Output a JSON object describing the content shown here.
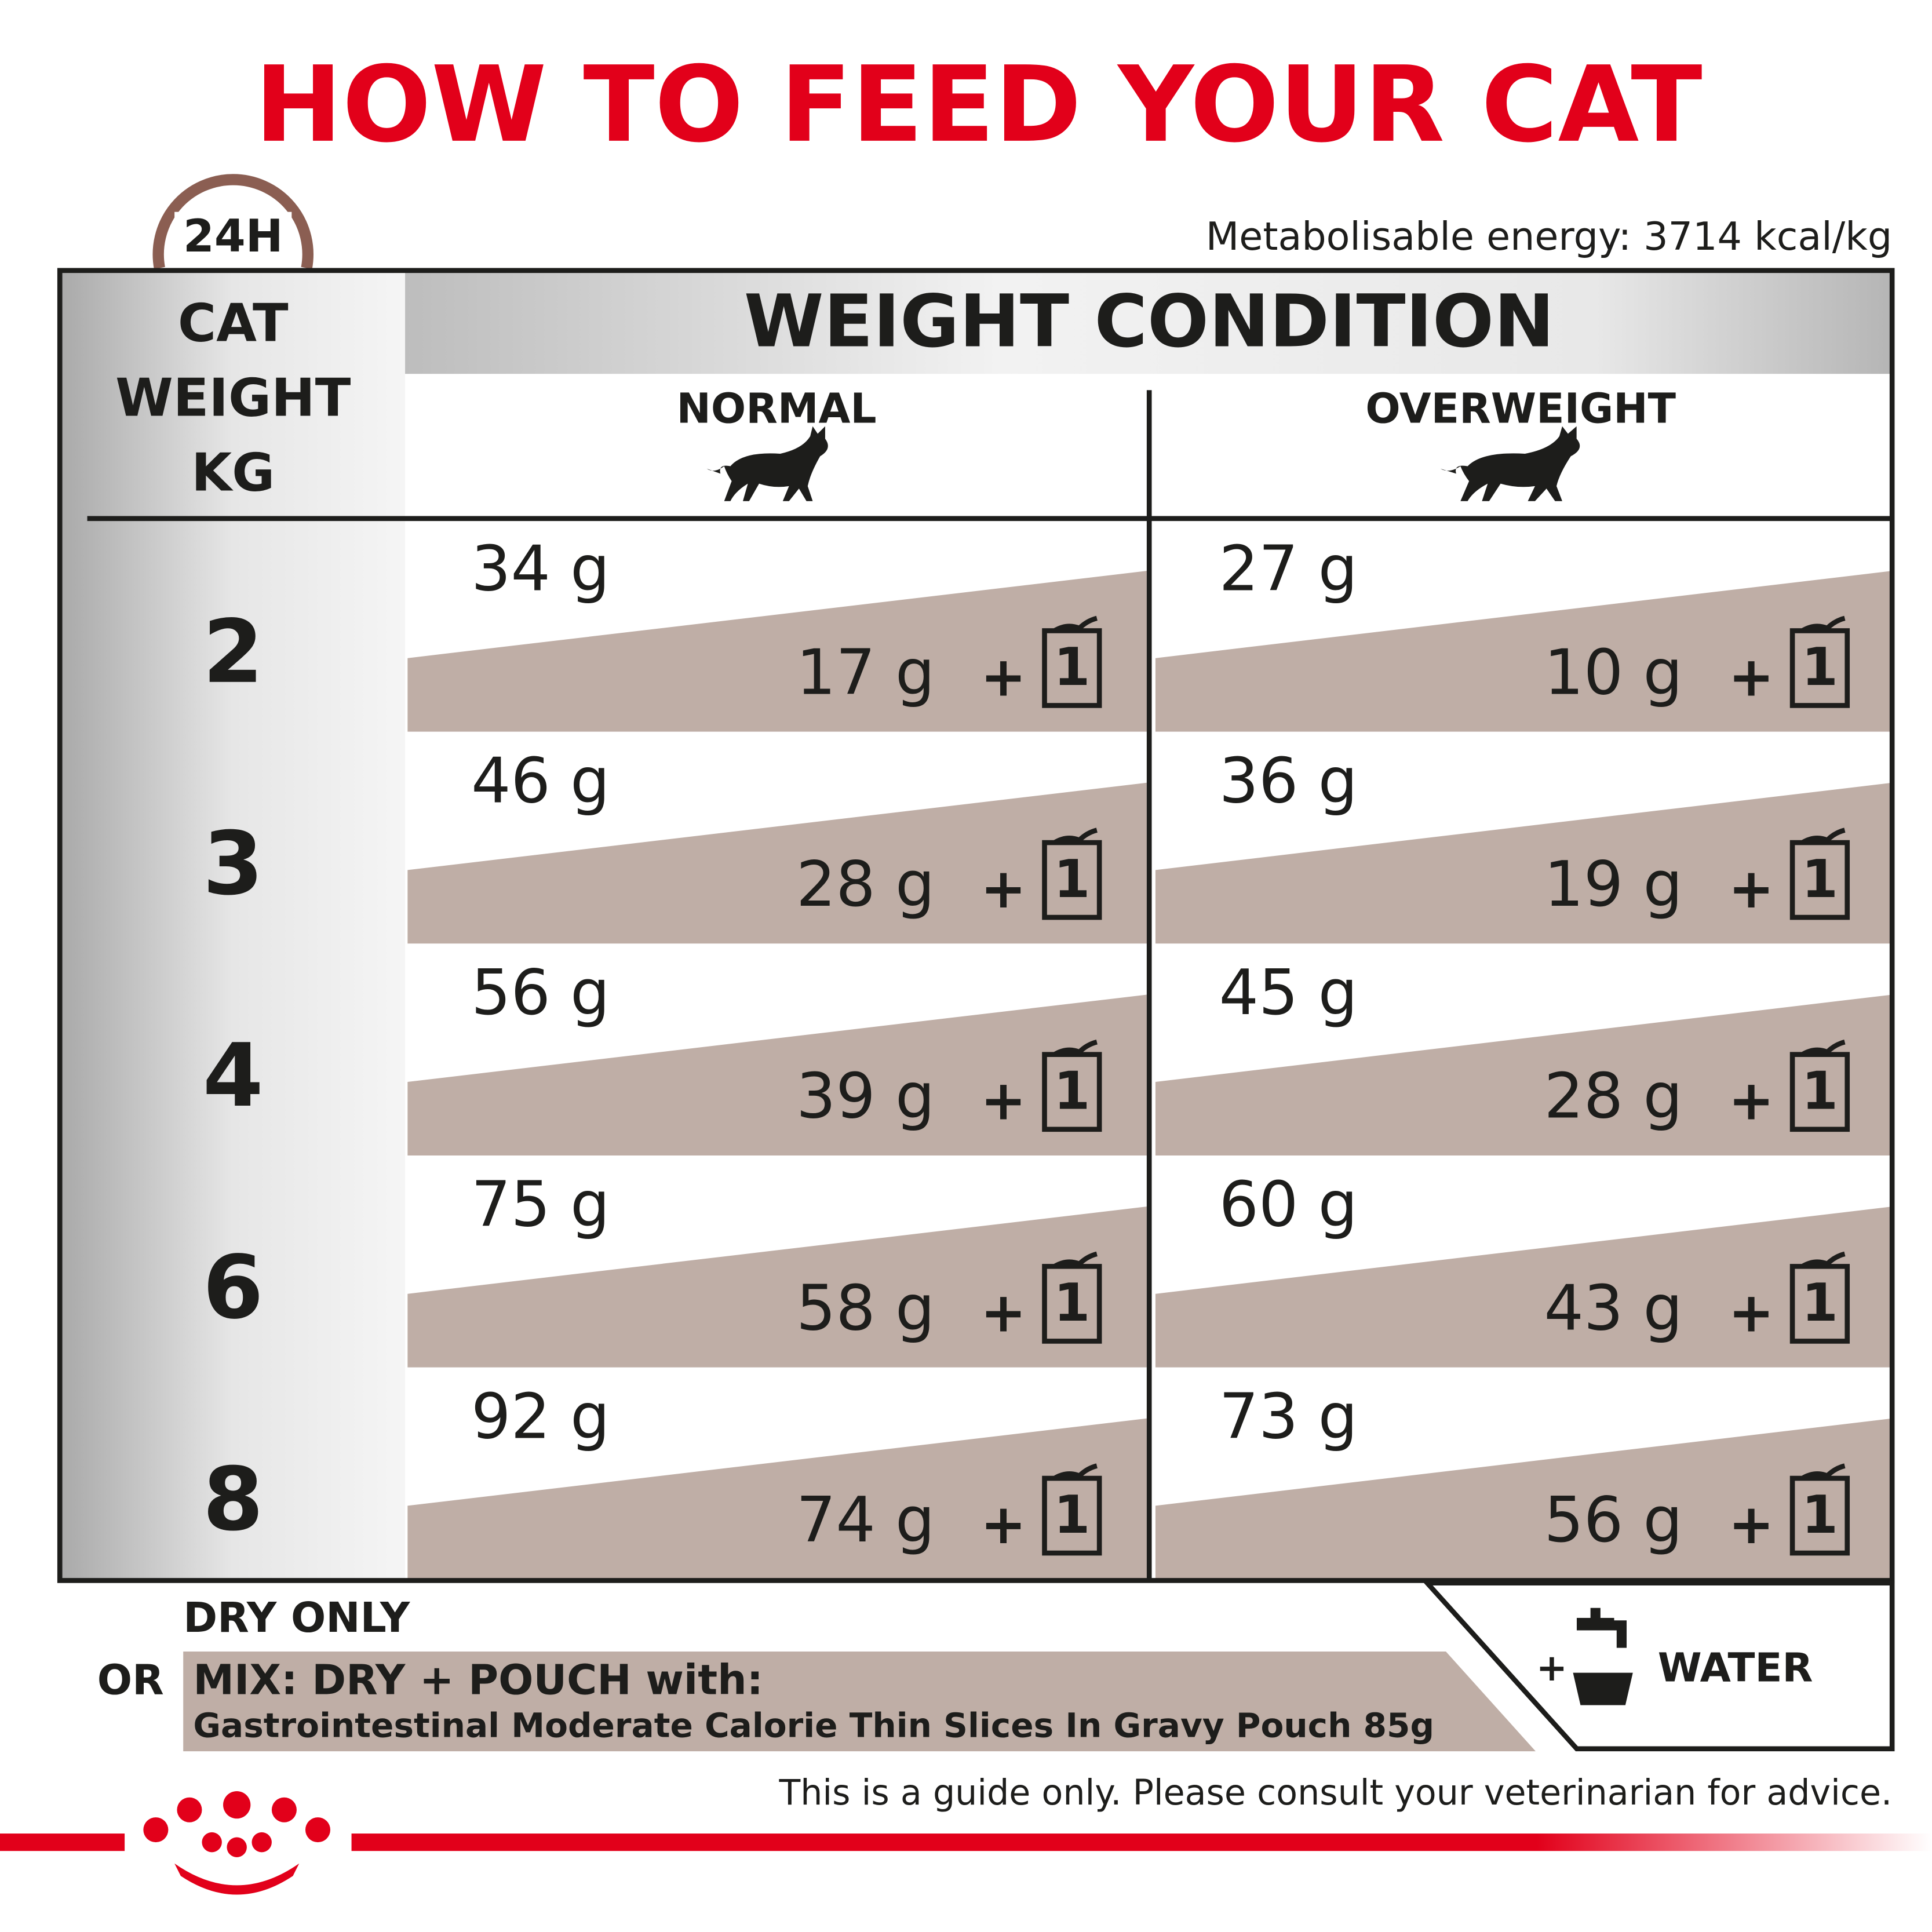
{
  "title": "HOW TO FEED YOUR CAT",
  "badge": "24H",
  "energy": "Metabolisable energy: 3714 kcal/kg",
  "table": {
    "weight_header": [
      "CAT",
      "WEIGHT",
      "KG"
    ],
    "condition_header": "WEIGHT CONDITION",
    "columns": [
      "NORMAL",
      "OVERWEIGHT"
    ],
    "plus": "+",
    "pouch": "1",
    "rows": [
      {
        "weight": "2",
        "cells": [
          {
            "dry": "34 g",
            "mix": "17 g"
          },
          {
            "dry": "27 g",
            "mix": "10 g"
          }
        ]
      },
      {
        "weight": "3",
        "cells": [
          {
            "dry": "46 g",
            "mix": "28 g"
          },
          {
            "dry": "36 g",
            "mix": "19 g"
          }
        ]
      },
      {
        "weight": "4",
        "cells": [
          {
            "dry": "56 g",
            "mix": "39 g"
          },
          {
            "dry": "45 g",
            "mix": "28 g"
          }
        ]
      },
      {
        "weight": "6",
        "cells": [
          {
            "dry": "75 g",
            "mix": "58 g"
          },
          {
            "dry": "60 g",
            "mix": "43 g"
          }
        ]
      },
      {
        "weight": "8",
        "cells": [
          {
            "dry": "92 g",
            "mix": "74 g"
          },
          {
            "dry": "73 g",
            "mix": "56 g"
          }
        ]
      }
    ]
  },
  "footer": {
    "dry_only": "DRY ONLY",
    "or": "OR",
    "mix": "MIX: DRY + POUCH with:",
    "product": "Gastrointestinal Moderate Calorie Thin Slices In Gravy Pouch 85g",
    "water_plus": "+",
    "water": "WATER",
    "disclaimer": "This is a guide only. Please consult your veterinarian for advice."
  }
}
